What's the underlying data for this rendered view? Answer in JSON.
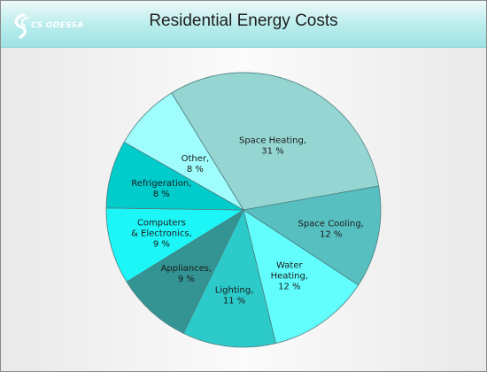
{
  "header": {
    "logo_text": "CS ODESSA",
    "colors": {
      "band_top": "#eef9f9",
      "band_bottom": "#9fe2e4"
    }
  },
  "chart_data": {
    "type": "pie",
    "title": "Residential Energy Costs",
    "unit": "%",
    "slices": [
      {
        "name": "Space Heating",
        "value": 31,
        "color": "#95d6d2",
        "label_lines": [
          "Space Heating,",
          "31 %"
        ]
      },
      {
        "name": "Space Cooling",
        "value": 12,
        "color": "#57bfc0",
        "label_lines": [
          "Space Cooling,",
          "12 %"
        ]
      },
      {
        "name": "Water Heating",
        "value": 12,
        "color": "#62fefe",
        "label_lines": [
          "Water",
          "Heating,",
          "12 %"
        ]
      },
      {
        "name": "Lighting",
        "value": 11,
        "color": "#2dcaca",
        "label_lines": [
          "Lighting,",
          "11 %"
        ]
      },
      {
        "name": "Appliances",
        "value": 9,
        "color": "#339493",
        "label_lines": [
          "Appliances,",
          "9 %"
        ]
      },
      {
        "name": "Computers & Electronics",
        "value": 9,
        "color": "#1cf6f7",
        "label_lines": [
          "Computers",
          "& Electronics,",
          "9 %"
        ]
      },
      {
        "name": "Refrigeration",
        "value": 8,
        "color": "#00cccc",
        "label_lines": [
          "Refrigeration,",
          "8 %"
        ]
      },
      {
        "name": "Other",
        "value": 8,
        "color": "#a0fdfd",
        "label_lines": [
          "Other,",
          "8 %"
        ]
      }
    ]
  }
}
